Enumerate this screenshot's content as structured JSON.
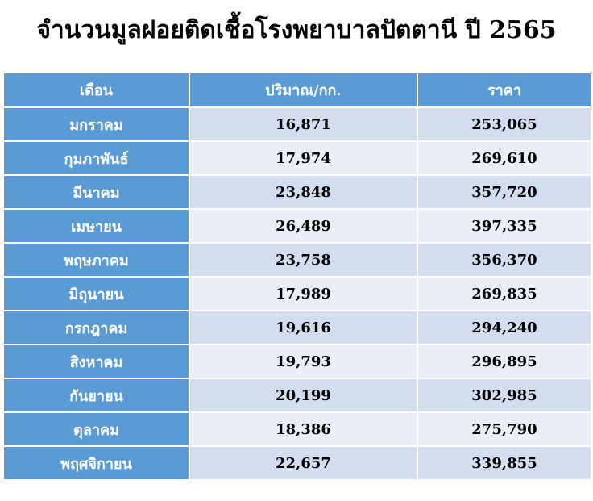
{
  "title": "จำนวนมูลฝอยติดเชื้อโรงพยาบาลปัตตานี ปี 2565",
  "table": {
    "headers": [
      "เดือน",
      "ปริมาณ/กก.",
      "ราคา"
    ],
    "rows": [
      {
        "month": "มกราคม",
        "quantity": "16,871",
        "price": "253,065"
      },
      {
        "month": "กุมภาพันธ์",
        "quantity": "17,974",
        "price": "269,610"
      },
      {
        "month": "มีนาคม",
        "quantity": "23,848",
        "price": "357,720"
      },
      {
        "month": "เมษายน",
        "quantity": "26,489",
        "price": "397,335"
      },
      {
        "month": "พฤษภาคม",
        "quantity": "23,758",
        "price": "356,370"
      },
      {
        "month": "มิถุนายน",
        "quantity": "17,989",
        "price": "269,835"
      },
      {
        "month": "กรกฎาคม",
        "quantity": "19,616",
        "price": "294,240"
      },
      {
        "month": "สิงหาคม",
        "quantity": "19,793",
        "price": "296,895"
      },
      {
        "month": "กันยายน",
        "quantity": "20,199",
        "price": "302,985"
      },
      {
        "month": "ตุลาคม",
        "quantity": "18,386",
        "price": "275,790"
      },
      {
        "month": "พฤศจิกายน",
        "quantity": "22,657",
        "price": "339,855"
      }
    ]
  },
  "colors": {
    "header_bg": "#5b9bd5",
    "row_band_dark": "#d2deef",
    "row_band_light": "#eaeff7"
  }
}
